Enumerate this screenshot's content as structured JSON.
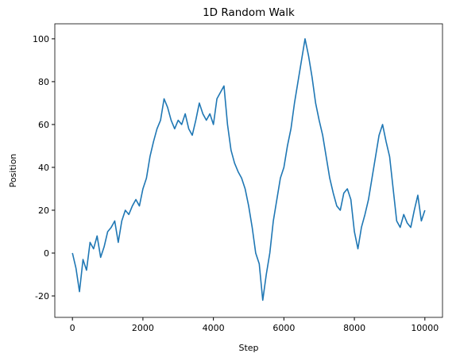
{
  "chart_data": {
    "type": "line",
    "title": "1D Random Walk",
    "x_label": "Step",
    "y_label": "Position",
    "x": [
      0,
      100,
      200,
      300,
      400,
      500,
      600,
      700,
      800,
      900,
      1000,
      1100,
      1200,
      1300,
      1400,
      1500,
      1600,
      1700,
      1800,
      1900,
      2000,
      2100,
      2200,
      2300,
      2400,
      2500,
      2600,
      2700,
      2800,
      2900,
      3000,
      3100,
      3200,
      3300,
      3400,
      3500,
      3600,
      3700,
      3800,
      3900,
      4000,
      4100,
      4200,
      4300,
      4400,
      4500,
      4600,
      4700,
      4800,
      4900,
      5000,
      5100,
      5200,
      5300,
      5400,
      5500,
      5600,
      5700,
      5800,
      5900,
      6000,
      6100,
      6200,
      6300,
      6400,
      6500,
      6600,
      6700,
      6800,
      6900,
      7000,
      7100,
      7200,
      7300,
      7400,
      7500,
      7600,
      7700,
      7800,
      7900,
      8000,
      8100,
      8200,
      8300,
      8400,
      8500,
      8600,
      8700,
      8800,
      8900,
      9000,
      9100,
      9200,
      9300,
      9400,
      9500,
      9600,
      9700,
      9800,
      9900,
      10000
    ],
    "values": [
      0,
      -7,
      -18,
      -3,
      -8,
      5,
      2,
      8,
      -2,
      3,
      10,
      12,
      15,
      5,
      15,
      20,
      18,
      22,
      25,
      22,
      30,
      35,
      45,
      52,
      58,
      62,
      72,
      68,
      62,
      58,
      62,
      60,
      65,
      58,
      55,
      62,
      70,
      65,
      62,
      65,
      60,
      72,
      75,
      78,
      60,
      48,
      42,
      38,
      35,
      30,
      22,
      12,
      0,
      -5,
      -22,
      -10,
      0,
      15,
      25,
      35,
      40,
      50,
      58,
      70,
      80,
      90,
      100,
      92,
      82,
      70,
      62,
      55,
      45,
      35,
      28,
      22,
      20,
      28,
      30,
      25,
      10,
      2,
      12,
      18,
      25,
      35,
      45,
      55,
      60,
      52,
      45,
      30,
      15,
      12,
      18,
      14,
      12,
      20,
      27,
      15,
      20
    ],
    "color": "#1f77b4",
    "xlim": [
      -500,
      10500
    ],
    "xticks": [
      0,
      2000,
      4000,
      6000,
      8000,
      10000
    ],
    "ylim": [
      -30,
      107
    ],
    "yticks": [
      -20,
      0,
      20,
      40,
      60,
      80,
      100
    ]
  }
}
